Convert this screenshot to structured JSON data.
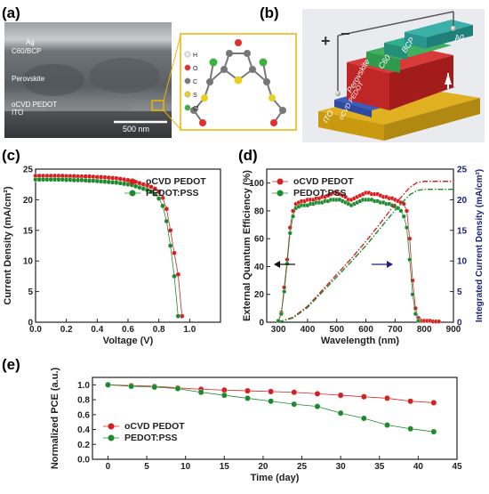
{
  "panels": {
    "a": "(a)",
    "b": "(b)",
    "c": "(c)",
    "d": "(d)",
    "e": "(e)"
  },
  "sem": {
    "labels": [
      "Ag",
      "C60/BCP",
      "Perovskite",
      "oCVD PEDOT",
      "ITO"
    ],
    "scalebar": "500 nm",
    "legend": [
      "H",
      "O",
      "C",
      "S",
      "Cl"
    ],
    "legend_colors": [
      "#e8e8e8",
      "#e03030",
      "#777777",
      "#e8d020",
      "#40b040"
    ]
  },
  "device": {
    "layers": [
      "Ag",
      "BCP",
      "C60",
      "Perovskite",
      "oCVD PEDOT",
      "ITO"
    ],
    "plus": "+",
    "minus": "−"
  },
  "colors": {
    "red": "#d42020",
    "green": "#1e8a2e",
    "navy": "#1a237e"
  },
  "chart_data": [
    {
      "id": "c",
      "type": "line",
      "xlabel": "Voltage (V)",
      "ylabel": "Current Density (mA/cm²)",
      "xlim": [
        0.0,
        1.2
      ],
      "ylim": [
        0,
        25
      ],
      "xticks": [
        0.0,
        0.2,
        0.4,
        0.6,
        0.8,
        1.0
      ],
      "yticks": [
        0,
        5,
        10,
        15,
        20,
        25
      ],
      "legend_position": "top-right",
      "series": [
        {
          "name": "oCVD PEDOT",
          "color": "#d42020",
          "x": [
            0.0,
            0.025,
            0.05,
            0.075,
            0.1,
            0.125,
            0.15,
            0.175,
            0.2,
            0.225,
            0.25,
            0.275,
            0.3,
            0.325,
            0.35,
            0.375,
            0.4,
            0.425,
            0.45,
            0.475,
            0.5,
            0.525,
            0.55,
            0.575,
            0.6,
            0.625,
            0.65,
            0.675,
            0.7,
            0.725,
            0.75,
            0.775,
            0.8,
            0.825,
            0.85,
            0.875,
            0.9,
            0.925,
            0.95
          ],
          "y": [
            23.9,
            23.9,
            23.9,
            23.9,
            23.9,
            23.9,
            23.9,
            23.9,
            23.85,
            23.85,
            23.85,
            23.8,
            23.8,
            23.8,
            23.8,
            23.75,
            23.7,
            23.7,
            23.65,
            23.6,
            23.55,
            23.5,
            23.4,
            23.3,
            23.2,
            23.1,
            22.9,
            22.7,
            22.5,
            22.3,
            22.1,
            21.8,
            21.3,
            20.3,
            18.5,
            15.0,
            11.3,
            7.8,
            1.0
          ]
        },
        {
          "name": "PEDOT:PSS",
          "color": "#1e8a2e",
          "x": [
            0.0,
            0.025,
            0.05,
            0.075,
            0.1,
            0.125,
            0.15,
            0.175,
            0.2,
            0.225,
            0.25,
            0.275,
            0.3,
            0.325,
            0.35,
            0.375,
            0.4,
            0.425,
            0.45,
            0.475,
            0.5,
            0.525,
            0.55,
            0.575,
            0.6,
            0.625,
            0.65,
            0.675,
            0.7,
            0.725,
            0.75,
            0.775,
            0.8,
            0.825,
            0.85,
            0.875,
            0.9,
            0.925
          ],
          "y": [
            23.3,
            23.3,
            23.3,
            23.3,
            23.3,
            23.3,
            23.3,
            23.3,
            23.25,
            23.25,
            23.2,
            23.2,
            23.2,
            23.15,
            23.1,
            23.1,
            23.05,
            23.0,
            22.95,
            22.9,
            22.85,
            22.8,
            22.7,
            22.6,
            22.5,
            22.4,
            22.2,
            22.0,
            21.8,
            21.6,
            21.3,
            20.9,
            20.2,
            19.0,
            16.5,
            12.5,
            7.5,
            1.0
          ]
        }
      ]
    },
    {
      "id": "d",
      "type": "line",
      "xlabel": "Wavelength (nm)",
      "ylabel": "External Quantum Efficiency (%)",
      "y2label": "Integrated Current Density (mA/cm²)",
      "xlim": [
        260,
        900
      ],
      "ylim": [
        0,
        110
      ],
      "y2lim": [
        0,
        25
      ],
      "xticks": [
        300,
        400,
        500,
        600,
        700,
        800,
        900
      ],
      "yticks": [
        0,
        20,
        40,
        60,
        80,
        100
      ],
      "y2ticks": [
        0,
        5,
        10,
        15,
        20,
        25
      ],
      "legend_position": "top-left",
      "series": [
        {
          "name": "oCVD PEDOT",
          "color": "#d42020",
          "x": [
            300,
            310,
            320,
            330,
            340,
            350,
            360,
            370,
            380,
            390,
            400,
            410,
            420,
            430,
            440,
            450,
            460,
            470,
            480,
            490,
            500,
            510,
            520,
            530,
            540,
            550,
            560,
            570,
            580,
            590,
            600,
            610,
            620,
            630,
            640,
            650,
            660,
            670,
            680,
            690,
            700,
            710,
            720,
            730,
            740,
            750,
            760,
            770,
            780,
            790,
            800,
            810,
            820,
            830,
            840,
            850
          ],
          "y": [
            1,
            7,
            25,
            45,
            68,
            80,
            85,
            86,
            87,
            87,
            88,
            88,
            88,
            89,
            89,
            90,
            90,
            91,
            92,
            93,
            93,
            92,
            91,
            90,
            88,
            88,
            89,
            90,
            91,
            92,
            93,
            93,
            92,
            92,
            92,
            91,
            90,
            90,
            89,
            89,
            88,
            87,
            86,
            85,
            80,
            60,
            30,
            10,
            3,
            1,
            1,
            1,
            1,
            0.5,
            0.5,
            0.5
          ]
        },
        {
          "name": "PEDOT:PSS",
          "color": "#1e8a2e",
          "x": [
            300,
            310,
            320,
            330,
            340,
            350,
            360,
            370,
            380,
            390,
            400,
            410,
            420,
            430,
            440,
            450,
            460,
            470,
            480,
            490,
            500,
            510,
            520,
            530,
            540,
            550,
            560,
            570,
            580,
            590,
            600,
            610,
            620,
            630,
            640,
            650,
            660,
            670,
            680,
            690,
            700,
            710,
            720,
            730,
            740,
            750,
            760,
            770,
            780
          ],
          "y": [
            1,
            6,
            22,
            42,
            64,
            76,
            82,
            83,
            84,
            84,
            84,
            85,
            85,
            86,
            86,
            86,
            87,
            87,
            88,
            88,
            88,
            88,
            87,
            86,
            85,
            84,
            85,
            86,
            87,
            88,
            88,
            88,
            88,
            87,
            87,
            86,
            86,
            85,
            85,
            84,
            83,
            82,
            80,
            76,
            68,
            45,
            20,
            6,
            1
          ]
        }
      ],
      "integrated_series": [
        {
          "name": "oCVD PEDOT",
          "color": "#d42020",
          "x": [
            300,
            350,
            400,
            450,
            500,
            550,
            600,
            650,
            700,
            750,
            775,
            800,
            850,
            900
          ],
          "y2": [
            0,
            0.8,
            2.6,
            5.2,
            7.8,
            10.4,
            13.2,
            16.2,
            19.3,
            22.0,
            22.8,
            23.0,
            23.0,
            23.0
          ]
        },
        {
          "name": "PEDOT:PSS",
          "color": "#1e8a2e",
          "x": [
            300,
            350,
            400,
            450,
            500,
            550,
            600,
            650,
            700,
            750,
            775,
            800,
            850,
            900
          ],
          "y2": [
            0,
            0.7,
            2.4,
            4.9,
            7.4,
            9.9,
            12.5,
            15.4,
            18.3,
            20.8,
            21.5,
            21.7,
            21.7,
            21.7
          ]
        }
      ]
    },
    {
      "id": "e",
      "type": "line",
      "xlabel": "Time (day)",
      "ylabel": "Normalized PCE (a.u.)",
      "xlim": [
        -2,
        45
      ],
      "ylim": [
        0.0,
        1.1
      ],
      "xticks": [
        0,
        5,
        10,
        15,
        20,
        25,
        30,
        35,
        40,
        45
      ],
      "yticks": [
        0.0,
        0.2,
        0.4,
        0.6,
        0.8,
        1.0
      ],
      "legend_position": "center-left",
      "series": [
        {
          "name": "oCVD PEDOT",
          "color": "#d42020",
          "x": [
            0,
            3,
            6,
            9,
            12,
            15,
            18,
            21,
            24,
            27,
            30,
            33,
            36,
            39,
            42
          ],
          "y": [
            1.0,
            0.99,
            0.98,
            0.96,
            0.94,
            0.93,
            0.92,
            0.91,
            0.9,
            0.88,
            0.86,
            0.84,
            0.82,
            0.78,
            0.76
          ]
        },
        {
          "name": "PEDOT:PSS",
          "color": "#1e8a2e",
          "x": [
            0,
            3,
            6,
            9,
            12,
            15,
            18,
            21,
            24,
            27,
            30,
            33,
            36,
            39,
            42
          ],
          "y": [
            1.0,
            0.98,
            0.97,
            0.95,
            0.9,
            0.86,
            0.82,
            0.78,
            0.74,
            0.71,
            0.62,
            0.55,
            0.46,
            0.41,
            0.37
          ]
        }
      ]
    }
  ]
}
